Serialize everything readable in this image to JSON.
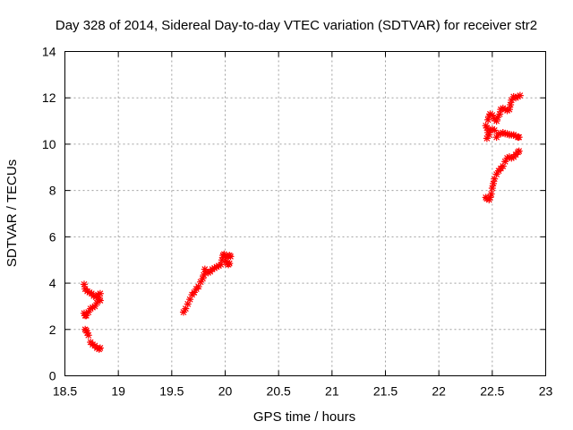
{
  "chart_data": {
    "type": "scatter",
    "title": "Day 328 of 2014, Sidereal Day-to-day VTEC variation (SDTVAR) for receiver str2",
    "xlabel": "GPS time / hours",
    "ylabel": "SDTVAR / TECUs",
    "xlim": [
      18.5,
      23
    ],
    "ylim": [
      0,
      14
    ],
    "xticks": [
      "18.5",
      "19",
      "19.5",
      "20",
      "20.5",
      "21",
      "21.5",
      "22",
      "22.5",
      "23"
    ],
    "yticks": [
      "0",
      "2",
      "4",
      "6",
      "8",
      "10",
      "12",
      "14"
    ],
    "grid": true,
    "marker": "plus-star",
    "color": "#ff0000",
    "series": [
      {
        "name": "SDTVAR",
        "points": [
          [
            18.68,
            3.95
          ],
          [
            18.69,
            3.75
          ],
          [
            18.71,
            3.65
          ],
          [
            18.73,
            3.6
          ],
          [
            18.75,
            3.55
          ],
          [
            18.77,
            3.45
          ],
          [
            18.79,
            3.4
          ],
          [
            18.81,
            3.5
          ],
          [
            18.83,
            3.55
          ],
          [
            18.82,
            3.3
          ],
          [
            18.83,
            3.25
          ],
          [
            18.8,
            3.15
          ],
          [
            18.78,
            3.0
          ],
          [
            18.76,
            2.95
          ],
          [
            18.74,
            2.9
          ],
          [
            18.72,
            2.75
          ],
          [
            18.7,
            2.6
          ],
          [
            18.69,
            2.6
          ],
          [
            18.68,
            2.7
          ],
          [
            18.69,
            2.0
          ],
          [
            18.7,
            1.95
          ],
          [
            18.71,
            1.85
          ],
          [
            18.72,
            1.75
          ],
          [
            18.74,
            1.45
          ],
          [
            18.76,
            1.35
          ],
          [
            18.78,
            1.3
          ],
          [
            18.8,
            1.2
          ],
          [
            18.82,
            1.15
          ],
          [
            18.83,
            1.2
          ],
          [
            19.61,
            2.75
          ],
          [
            19.63,
            2.9
          ],
          [
            19.65,
            3.1
          ],
          [
            19.67,
            3.3
          ],
          [
            19.69,
            3.5
          ],
          [
            19.71,
            3.6
          ],
          [
            19.73,
            3.75
          ],
          [
            19.75,
            3.85
          ],
          [
            19.77,
            4.05
          ],
          [
            19.79,
            4.2
          ],
          [
            19.8,
            4.35
          ],
          [
            19.81,
            4.6
          ],
          [
            19.82,
            4.5
          ],
          [
            19.84,
            4.45
          ],
          [
            19.86,
            4.5
          ],
          [
            19.88,
            4.6
          ],
          [
            19.9,
            4.65
          ],
          [
            19.92,
            4.7
          ],
          [
            19.94,
            4.75
          ],
          [
            19.96,
            4.8
          ],
          [
            19.97,
            5.0
          ],
          [
            19.98,
            5.2
          ],
          [
            19.99,
            5.25
          ],
          [
            20.0,
            5.15
          ],
          [
            20.01,
            4.95
          ],
          [
            20.02,
            4.85
          ],
          [
            20.03,
            5.15
          ],
          [
            20.04,
            5.2
          ],
          [
            20.05,
            5.15
          ],
          [
            20.04,
            4.85
          ],
          [
            20.03,
            4.8
          ],
          [
            22.44,
            7.7
          ],
          [
            22.45,
            7.65
          ],
          [
            22.47,
            7.6
          ],
          [
            22.48,
            7.7
          ],
          [
            22.49,
            7.85
          ],
          [
            22.5,
            8.1
          ],
          [
            22.51,
            8.3
          ],
          [
            22.52,
            8.5
          ],
          [
            22.54,
            8.7
          ],
          [
            22.56,
            8.85
          ],
          [
            22.58,
            8.95
          ],
          [
            22.6,
            9.05
          ],
          [
            22.62,
            9.25
          ],
          [
            22.64,
            9.4
          ],
          [
            22.66,
            9.45
          ],
          [
            22.68,
            9.4
          ],
          [
            22.7,
            9.45
          ],
          [
            22.72,
            9.55
          ],
          [
            22.74,
            9.65
          ],
          [
            22.75,
            9.7
          ],
          [
            22.44,
            10.8
          ],
          [
            22.45,
            10.7
          ],
          [
            22.46,
            10.5
          ],
          [
            22.45,
            10.25
          ],
          [
            22.47,
            10.4
          ],
          [
            22.48,
            10.6
          ],
          [
            22.5,
            10.65
          ],
          [
            22.52,
            10.6
          ],
          [
            22.54,
            10.3
          ],
          [
            22.56,
            10.45
          ],
          [
            22.58,
            10.45
          ],
          [
            22.6,
            10.5
          ],
          [
            22.62,
            10.45
          ],
          [
            22.64,
            10.45
          ],
          [
            22.66,
            10.4
          ],
          [
            22.68,
            10.4
          ],
          [
            22.7,
            10.4
          ],
          [
            22.72,
            10.35
          ],
          [
            22.74,
            10.3
          ],
          [
            22.75,
            10.3
          ],
          [
            22.46,
            11.05
          ],
          [
            22.47,
            11.2
          ],
          [
            22.48,
            11.3
          ],
          [
            22.5,
            11.25
          ],
          [
            22.52,
            11.1
          ],
          [
            22.54,
            11.0
          ],
          [
            22.55,
            11.15
          ],
          [
            22.57,
            11.3
          ],
          [
            22.58,
            11.5
          ],
          [
            22.6,
            11.55
          ],
          [
            22.62,
            11.5
          ],
          [
            22.64,
            11.45
          ],
          [
            22.66,
            11.5
          ],
          [
            22.67,
            11.7
          ],
          [
            22.68,
            11.9
          ],
          [
            22.7,
            12.05
          ],
          [
            22.72,
            12.0
          ],
          [
            22.74,
            12.05
          ],
          [
            22.76,
            12.1
          ]
        ]
      }
    ]
  }
}
